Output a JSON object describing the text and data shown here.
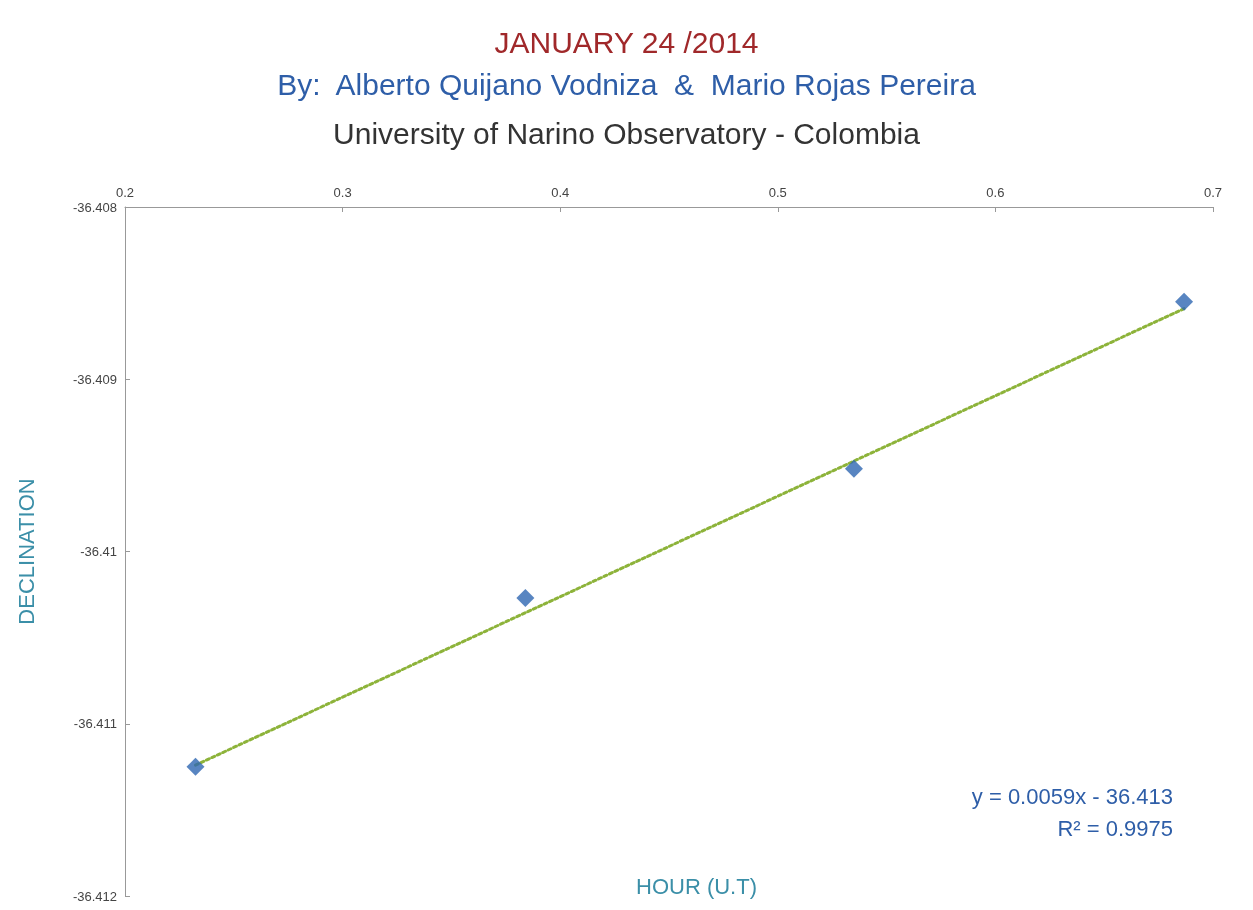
{
  "chart_data": {
    "type": "scatter",
    "title": "JANUARY 24 /2014",
    "subtitle": "By:  Alberto Quijano Vodniza  &  Mario Rojas Pereira",
    "annotations": [
      "University of Narino Observatory - Colombia",
      "y = 0.0059x - 36.413",
      "R² = 0.9975"
    ],
    "xlabel": "HOUR (U.T)",
    "ylabel": "DECLINATION",
    "series": [
      {
        "color": "#2e67b1",
        "marker": "diamond",
        "x": [
          0.2324,
          0.384,
          0.535,
          0.6867
        ],
        "values": [
          -36.41125,
          -36.41027,
          -36.40952,
          -36.40855
        ]
      },
      {
        "type": "line",
        "color": "#8db33a",
        "line_style": "dotted",
        "marker": "none",
        "x": [
          0.2324,
          0.6867
        ],
        "values": [
          -36.41124,
          -36.40859
        ]
      }
    ],
    "xlim": [
      0.2,
      0.7
    ],
    "xticks": [
      0.2,
      0.3,
      0.4,
      0.5,
      0.6,
      0.7
    ],
    "ylim": [
      -36.412,
      -36.408
    ],
    "yticks": [
      -36.412,
      -36.411,
      -36.41,
      -36.409,
      -36.408
    ],
    "grid": false
  }
}
